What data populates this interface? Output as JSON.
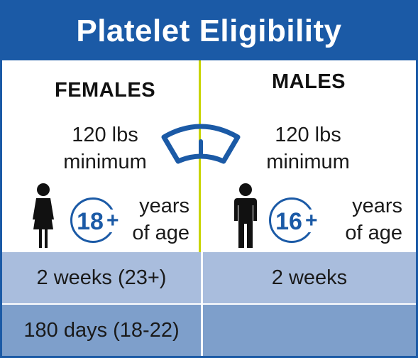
{
  "title": "Platelet Eligibility",
  "colors": {
    "brand_blue": "#1b5aa6",
    "divider_green": "#c8d400",
    "row_light": "#a9bddd",
    "row_dark": "#7e9fcb"
  },
  "females": {
    "heading": "FEMALES",
    "weight_line1": "120 lbs",
    "weight_line2": "minimum",
    "age_number": "18",
    "age_plus": "+",
    "years_line1": "years",
    "years_line2": "of age",
    "frequency": "2 weeks (23+)",
    "frequency_young": "180 days (18-22)"
  },
  "males": {
    "heading": "MALES",
    "weight_line1": "120 lbs",
    "weight_line2": "minimum",
    "age_number": "16",
    "age_plus": "+",
    "years_line1": "years",
    "years_line2": "of age",
    "frequency": "2 weeks",
    "frequency_young": ""
  },
  "icons": [
    "scale-icon",
    "female-person-icon",
    "male-person-icon"
  ]
}
